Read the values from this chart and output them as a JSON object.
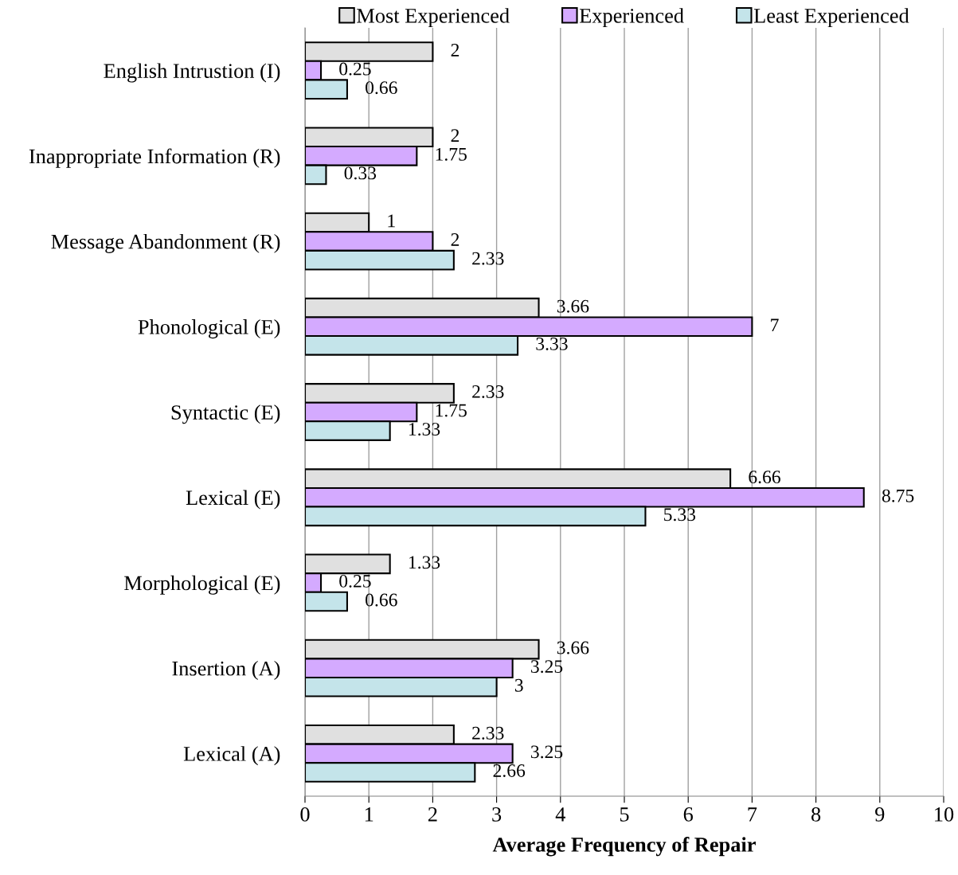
{
  "chart_data": {
    "type": "bar",
    "orientation": "horizontal",
    "xlabel": "Average Frequency of Repair",
    "categories": [
      "English Intrustion (I)",
      "Inappropriate Information (R)",
      "Message Abandonment (R)",
      "Phonological (E)",
      "Syntactic (E)",
      "Lexical (E)",
      "Morphological (E)",
      "Insertion (A)",
      "Lexical (A)"
    ],
    "series": [
      {
        "name": "Most Experienced",
        "color": "#e0e0e0",
        "values": [
          2,
          2,
          1,
          3.66,
          2.33,
          6.66,
          1.33,
          3.66,
          2.33
        ]
      },
      {
        "name": "Experienced",
        "color": "#d4aaff",
        "values": [
          0.25,
          1.75,
          2,
          7,
          1.75,
          8.75,
          0.25,
          3.25,
          3.25
        ]
      },
      {
        "name": "Least Experienced",
        "color": "#c4e4ea",
        "values": [
          0.66,
          0.33,
          2.33,
          3.33,
          1.33,
          5.33,
          0.66,
          3,
          2.66
        ]
      }
    ],
    "xlim": [
      0,
      10
    ],
    "xticks": [
      0,
      1,
      2,
      3,
      4,
      5,
      6,
      7,
      8,
      9,
      10
    ],
    "grid": "x",
    "legend": "top",
    "data_labels": true
  }
}
